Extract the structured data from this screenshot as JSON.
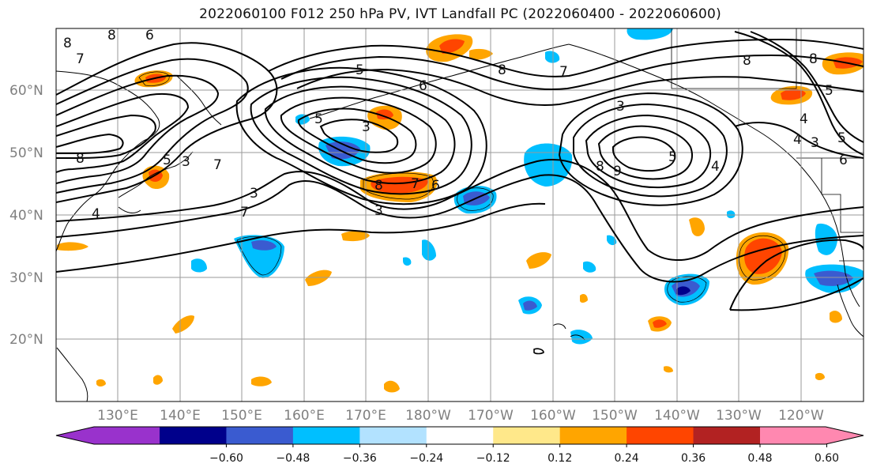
{
  "title": "2022060100 F012 250 hPa PV, IVT Landfall PC (2022060400 - 2022060600)",
  "latitude_labels": [
    "60°N",
    "50°N",
    "40°N",
    "30°N",
    "20°N"
  ],
  "longitude_labels": [
    "130°E",
    "140°E",
    "150°E",
    "160°E",
    "170°E",
    "180°W",
    "170°W",
    "160°W",
    "150°W",
    "140°W",
    "130°W",
    "120°W"
  ],
  "colorbar": {
    "tick_labels": [
      "−0.60",
      "−0.48",
      "−0.36",
      "−0.24",
      "−0.12",
      "0.12",
      "0.24",
      "0.36",
      "0.48",
      "0.60"
    ],
    "colors": [
      "#9932cc",
      "#00008b",
      "#3a5bd0",
      "#00bfff",
      "#b2e2ff",
      "#ffffff",
      "#ffe88a",
      "#ffa500",
      "#ff4500",
      "#b22222",
      "#ff88b0"
    ]
  },
  "contour_labels": [
    "8",
    "8",
    "6",
    "7",
    "8",
    "5",
    "6",
    "5",
    "8",
    "7",
    "4",
    "3",
    "8",
    "7",
    "6",
    "3",
    "3",
    "7",
    "3",
    "3",
    "7",
    "4",
    "3",
    "5",
    "5",
    "4",
    "5",
    "6",
    "8",
    "5",
    "8",
    "9",
    "4",
    "8"
  ]
}
